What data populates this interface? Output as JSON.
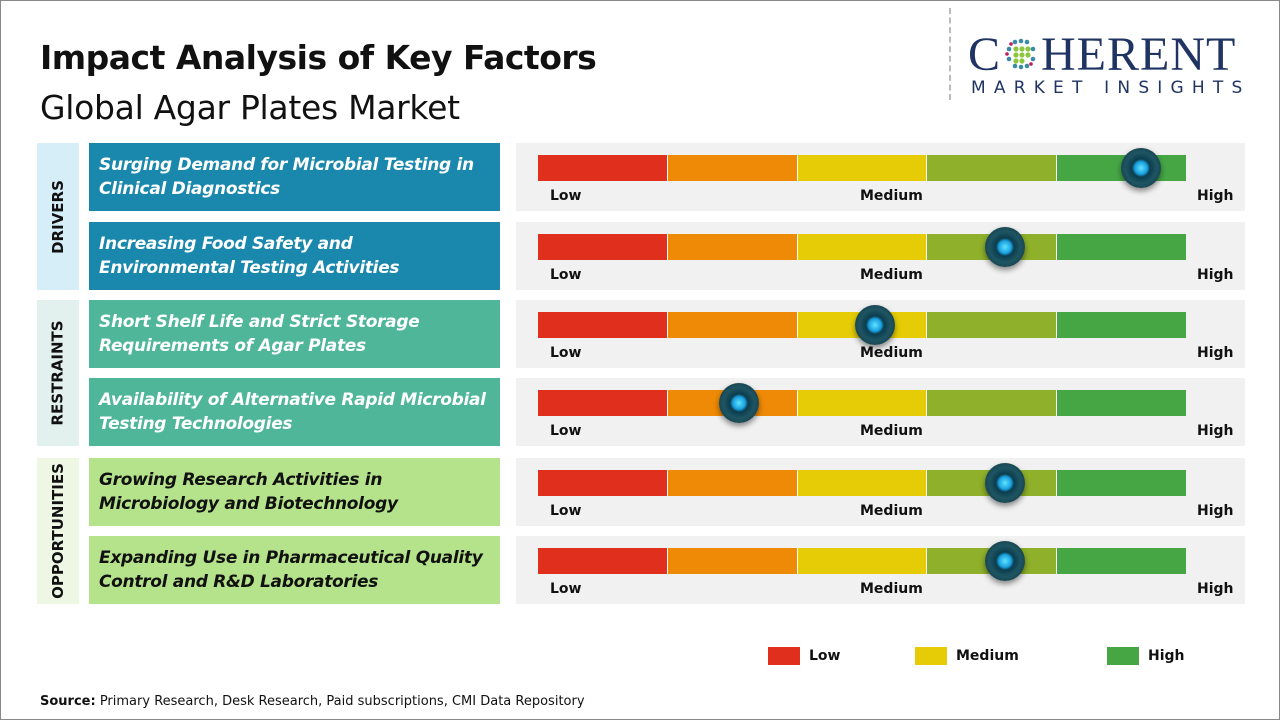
{
  "header": {
    "title": "Impact Analysis of Key Factors",
    "subtitle": "Global Agar Plates Market"
  },
  "logo": {
    "main_left": "C",
    "main_right": "HERENT",
    "sub": "MARKET INSIGHTS"
  },
  "colors": {
    "drivers": "#1a88ad",
    "restraints": "#4fb69a",
    "opportunities": "#b5e38b",
    "scale": [
      "#e02f1d",
      "#ee8a05",
      "#e5cc06",
      "#8fb02a",
      "#46a644"
    ],
    "knob": "#1aa0e0"
  },
  "chart_data": {
    "type": "gauge",
    "scale_labels": {
      "low": "Low",
      "medium": "Medium",
      "high": "High"
    },
    "value_range": [
      0,
      1
    ],
    "groups": [
      {
        "name": "DRIVERS",
        "factors": [
          {
            "label": "Surging Demand for Microbial Testing in Clinical Diagnostics",
            "impact": 0.93
          },
          {
            "label": "Increasing Food Safety and Environmental Testing Activities",
            "impact": 0.72
          }
        ]
      },
      {
        "name": "RESTRAINTS",
        "factors": [
          {
            "label": "Short Shelf Life and Strict Storage Requirements of Agar Plates",
            "impact": 0.52
          },
          {
            "label": "Availability of Alternative Rapid Microbial Testing Technologies",
            "impact": 0.31
          }
        ]
      },
      {
        "name": "OPPORTUNITIES",
        "factors": [
          {
            "label": "Growing Research Activities in Microbiology and Biotechnology",
            "impact": 0.72
          },
          {
            "label": "Expanding Use in Pharmaceutical Quality Control and R&D Laboratories",
            "impact": 0.72
          }
        ]
      }
    ],
    "legend": [
      {
        "label": "Low",
        "color": "#e02f1d"
      },
      {
        "label": "Medium",
        "color": "#e5cc06"
      },
      {
        "label": "High",
        "color": "#46a644"
      }
    ]
  },
  "footer": {
    "source_label": "Source:",
    "source_text": " Primary Research, Desk Research, Paid subscriptions, CMI Data Repository"
  }
}
